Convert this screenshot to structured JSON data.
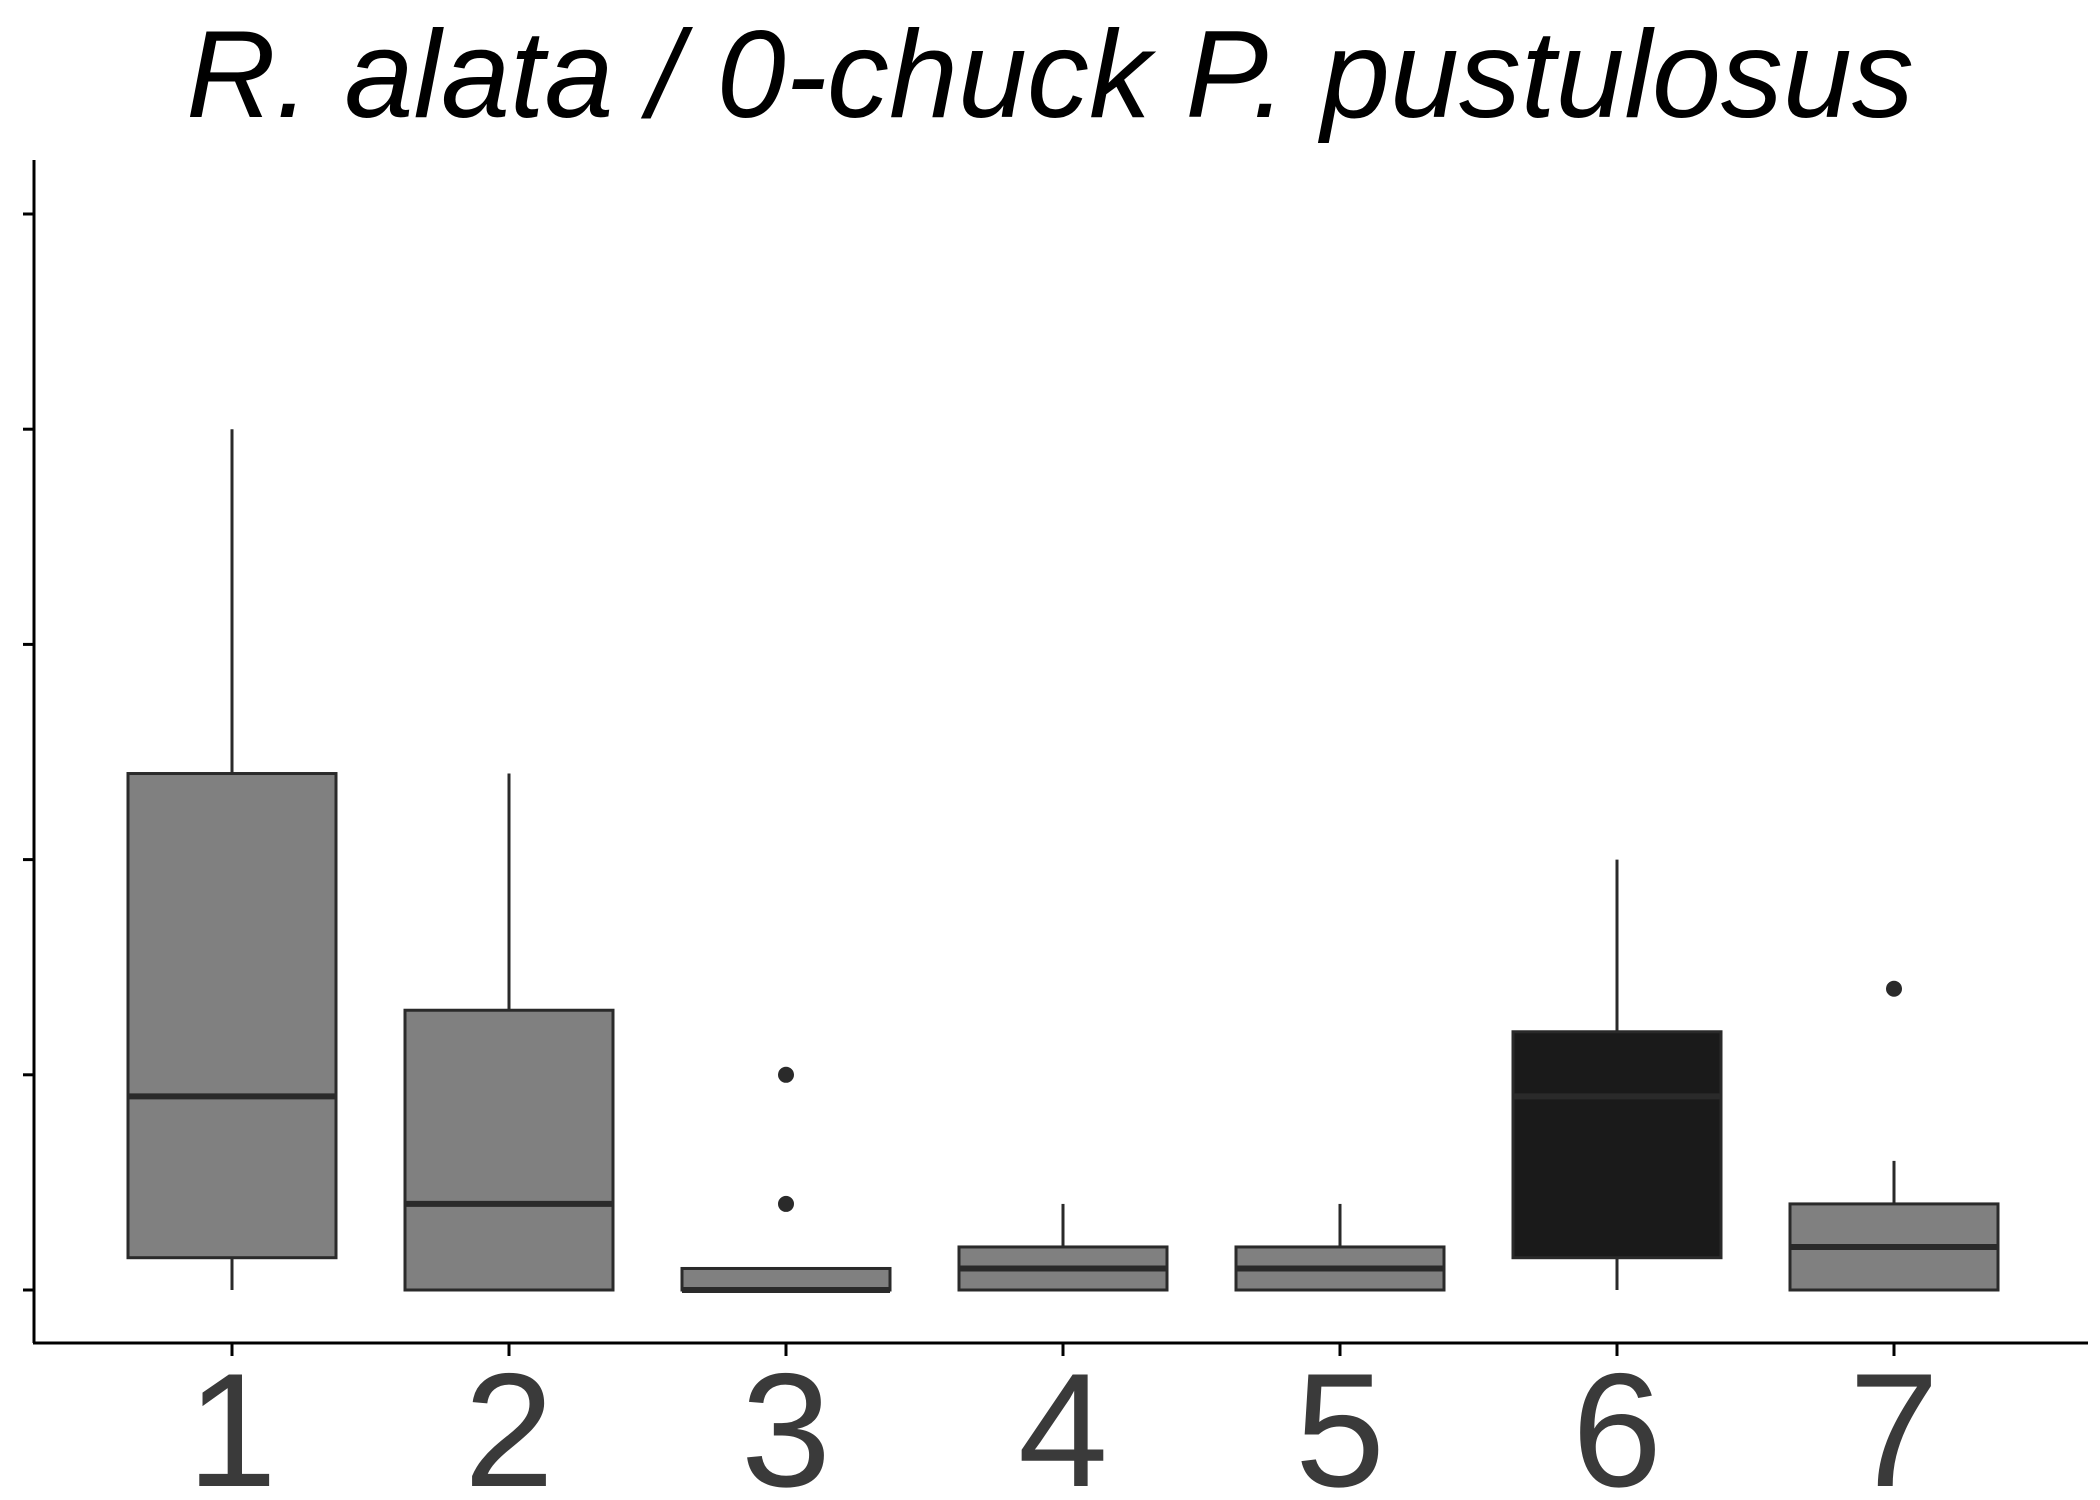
{
  "chart_data": {
    "type": "box",
    "title": "R. alata / 0-chuck P. pustulosus",
    "xlabel": "",
    "ylabel": "",
    "categories": [
      "1",
      "2",
      "3",
      "4",
      "5",
      "6",
      "7"
    ],
    "ylim": [
      -0.25,
      5.25
    ],
    "y_ticks": [
      0,
      1,
      2,
      3,
      4,
      5
    ],
    "y_tick_labels_shown": false,
    "grid": false,
    "legend": "none",
    "boxes": [
      {
        "category": "1",
        "whisker_low": 0,
        "q1": 0.15,
        "median": 0.9,
        "q3": 2.4,
        "whisker_high": 4,
        "outliers": [],
        "fill": "#808080"
      },
      {
        "category": "2",
        "whisker_low": 0,
        "q1": 0,
        "median": 0.4,
        "q3": 1.3,
        "whisker_high": 2.4,
        "outliers": [],
        "fill": "#808080"
      },
      {
        "category": "3",
        "whisker_low": 0,
        "q1": 0,
        "median": 0,
        "q3": 0.1,
        "whisker_high": 0.1,
        "outliers": [
          0.4,
          1.0
        ],
        "fill": "#808080"
      },
      {
        "category": "4",
        "whisker_low": 0,
        "q1": 0,
        "median": 0.1,
        "q3": 0.2,
        "whisker_high": 0.4,
        "outliers": [],
        "fill": "#808080"
      },
      {
        "category": "5",
        "whisker_low": 0,
        "q1": 0,
        "median": 0.1,
        "q3": 0.2,
        "whisker_high": 0.4,
        "outliers": [],
        "fill": "#808080"
      },
      {
        "category": "6",
        "whisker_low": 0,
        "q1": 0.15,
        "median": 0.9,
        "q3": 1.2,
        "whisker_high": 2.0,
        "outliers": [],
        "fill": "#1a1a1a"
      },
      {
        "category": "7",
        "whisker_low": 0,
        "q1": 0,
        "median": 0.2,
        "q3": 0.4,
        "whisker_high": 0.6,
        "outliers": [
          1.4
        ],
        "fill": "#808080"
      }
    ],
    "colors": {
      "box_default": "#808080",
      "box_highlight": "#1a1a1a",
      "outline": "#2a2a2a",
      "axis": "#000000",
      "tick_label": "#3a3a3a"
    }
  }
}
